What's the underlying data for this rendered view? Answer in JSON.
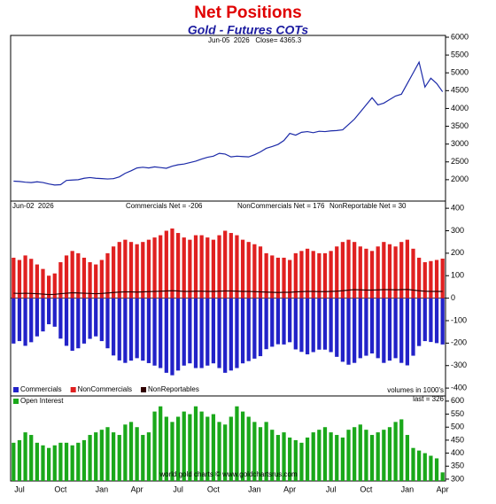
{
  "chart_data": [
    {
      "type": "line",
      "title": "Net Positions",
      "subtitle": "Gold - Futures COTs",
      "annotations": [
        "Jun-05  2026   Close= 4365.3"
      ],
      "ylim": [
        1400,
        6050
      ],
      "yticks": [
        2000,
        2500,
        3000,
        3500,
        4000,
        4500,
        5000,
        5500,
        6000
      ],
      "series": [
        {
          "color": "#1c2aa8",
          "values": [
            1960,
            1950,
            1930,
            1920,
            1940,
            1920,
            1880,
            1850,
            1860,
            1980,
            1990,
            2000,
            2040,
            2060,
            2040,
            2030,
            2020,
            2030,
            2080,
            2180,
            2250,
            2330,
            2350,
            2330,
            2360,
            2340,
            2320,
            2380,
            2420,
            2440,
            2480,
            2520,
            2580,
            2630,
            2660,
            2740,
            2720,
            2640,
            2660,
            2650,
            2640,
            2700,
            2780,
            2880,
            2930,
            2990,
            3100,
            3300,
            3250,
            3330,
            3350,
            3320,
            3360,
            3350,
            3370,
            3380,
            3400,
            3550,
            3700,
            3900,
            4100,
            4300,
            4100,
            4150,
            4250,
            4350,
            4400,
            4700,
            5000,
            5300,
            4600,
            4850,
            4700,
            4470
          ]
        }
      ]
    },
    {
      "type": "bar",
      "annotations": [
        "Jun-02  2026",
        "Commercials Net = -206",
        "NonCommercials Net = 176",
        "NonReportable Net = 30"
      ],
      "ylim": [
        -435,
        432
      ],
      "yticks": [
        -400,
        -300,
        -200,
        -100,
        0,
        100,
        200,
        300,
        400
      ],
      "series": [
        {
          "name": "Commercials",
          "color": "#2222c8",
          "values": [
            -202,
            -191,
            -212,
            -196,
            -170,
            -148,
            -116,
            -127,
            -180,
            -212,
            -234,
            -223,
            -202,
            -181,
            -170,
            -191,
            -223,
            -255,
            -277,
            -288,
            -278,
            -267,
            -278,
            -289,
            -300,
            -311,
            -332,
            -343,
            -322,
            -300,
            -290,
            -311,
            -311,
            -300,
            -290,
            -311,
            -332,
            -322,
            -311,
            -290,
            -280,
            -269,
            -258,
            -227,
            -216,
            -205,
            -206,
            -196,
            -228,
            -239,
            -250,
            -240,
            -229,
            -229,
            -240,
            -261,
            -283,
            -296,
            -288,
            -267,
            -256,
            -246,
            -267,
            -288,
            -278,
            -267,
            -288,
            -299,
            -256,
            -213,
            -191,
            -195,
            -200,
            -206
          ]
        },
        {
          "name": "NonCommercials",
          "color": "#e02020",
          "values": [
            180,
            170,
            190,
            175,
            150,
            130,
            100,
            110,
            160,
            190,
            210,
            200,
            180,
            160,
            150,
            170,
            200,
            230,
            250,
            260,
            250,
            240,
            250,
            260,
            270,
            280,
            300,
            310,
            290,
            270,
            260,
            280,
            280,
            270,
            260,
            280,
            300,
            290,
            280,
            260,
            250,
            240,
            230,
            200,
            190,
            180,
            180,
            170,
            200,
            210,
            220,
            210,
            200,
            200,
            210,
            230,
            250,
            260,
            250,
            230,
            220,
            210,
            230,
            250,
            240,
            230,
            250,
            260,
            220,
            180,
            160,
            165,
            170,
            176
          ]
        },
        {
          "name": "NonReportables",
          "color": "#300000",
          "style": "line",
          "values": [
            22,
            21,
            22,
            21,
            20,
            18,
            16,
            17,
            20,
            22,
            24,
            23,
            22,
            21,
            20,
            21,
            23,
            25,
            27,
            28,
            28,
            27,
            28,
            29,
            30,
            31,
            32,
            33,
            32,
            30,
            30,
            31,
            31,
            30,
            30,
            31,
            32,
            32,
            31,
            30,
            30,
            29,
            28,
            27,
            26,
            25,
            26,
            26,
            28,
            29,
            30,
            30,
            29,
            29,
            30,
            31,
            33,
            36,
            38,
            37,
            36,
            36,
            37,
            38,
            38,
            37,
            38,
            39,
            36,
            33,
            31,
            30,
            30,
            30
          ]
        }
      ]
    },
    {
      "type": "bar",
      "annotations": [
        "volumes in 1000's",
        "last = 326",
        "world gold charts © www.goldchartsrus.com"
      ],
      "ylim": [
        293,
        620
      ],
      "yticks": [
        300,
        350,
        400,
        450,
        500,
        550,
        600
      ],
      "categories": [
        null,
        "Jul",
        null,
        null,
        null,
        null,
        null,
        null,
        "Oct",
        null,
        null,
        null,
        null,
        null,
        null,
        "Jan",
        null,
        null,
        null,
        null,
        null,
        "Apr",
        null,
        null,
        null,
        null,
        null,
        null,
        "Jul",
        null,
        null,
        null,
        null,
        null,
        "Oct",
        null,
        null,
        null,
        null,
        null,
        null,
        "Jan",
        null,
        null,
        null,
        null,
        null,
        "Apr",
        null,
        null,
        null,
        null,
        null,
        null,
        "Jul",
        null,
        null,
        null,
        null,
        null,
        "Oct",
        null,
        null,
        null,
        null,
        null,
        null,
        "Jan",
        null,
        null,
        null,
        null,
        null,
        "Apr"
      ],
      "series": [
        {
          "name": "Open Interest",
          "color": "#1aa81a",
          "values": [
            440,
            450,
            480,
            470,
            440,
            430,
            420,
            430,
            440,
            440,
            430,
            440,
            450,
            470,
            480,
            490,
            500,
            480,
            470,
            510,
            520,
            500,
            470,
            480,
            560,
            580,
            540,
            520,
            540,
            560,
            550,
            580,
            560,
            540,
            550,
            520,
            510,
            540,
            580,
            560,
            540,
            520,
            500,
            520,
            490,
            470,
            480,
            460,
            450,
            440,
            460,
            480,
            490,
            500,
            480,
            470,
            460,
            490,
            500,
            510,
            490,
            470,
            480,
            490,
            500,
            520,
            530,
            470,
            420,
            410,
            400,
            390,
            380,
            326
          ]
        }
      ]
    }
  ]
}
